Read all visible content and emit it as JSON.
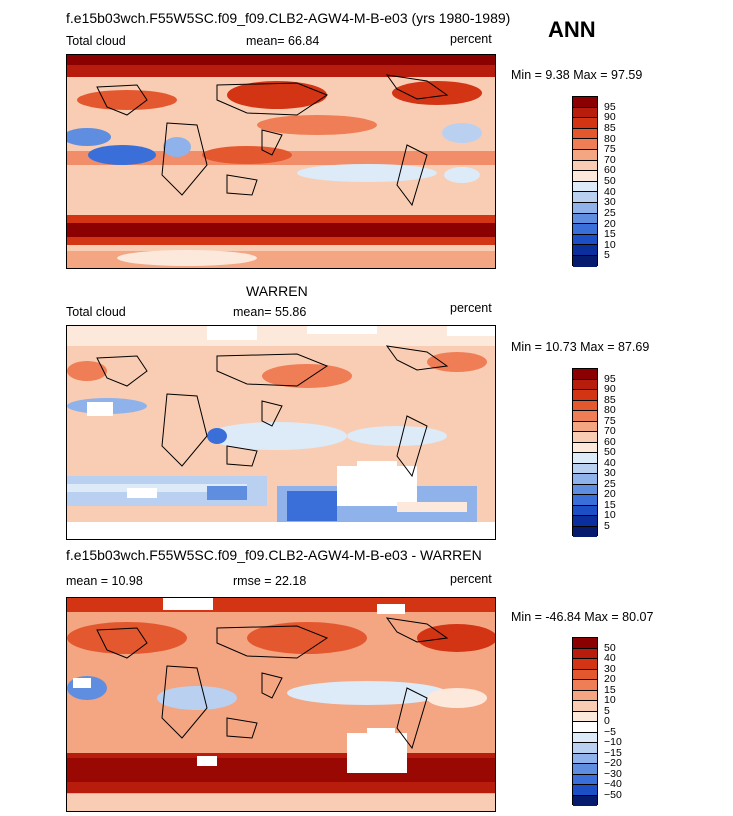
{
  "season": "ANN",
  "panels": [
    {
      "title": "f.e15b03wch.F55W5SC.f09_f09.CLB2-AGW4-M-B-e03 (yrs 1980-1989)",
      "left_label": "Total cloud",
      "center_label": "mean=  66.84",
      "right_label": "percent",
      "minmax": "Min =   9.38 Max =  97.59"
    },
    {
      "title": "WARREN",
      "left_label": "Total cloud",
      "center_label": "mean=  55.86",
      "right_label": "percent",
      "minmax": "Min =  10.73 Max =  87.69"
    },
    {
      "title": "f.e15b03wch.F55W5SC.f09_f09.CLB2-AGW4-M-B-e03 - WARREN",
      "left_label": "mean =  10.98",
      "center_label": "rmse =  22.18",
      "right_label": "percent",
      "minmax": "Min = -46.84 Max =  80.07"
    }
  ],
  "chart_data": {
    "type": "heatmap",
    "abs_levels": [
      "95",
      "90",
      "85",
      "80",
      "75",
      "70",
      "60",
      "50",
      "40",
      "30",
      "25",
      "20",
      "15",
      "10",
      "5"
    ],
    "abs_colors": [
      "#8b0000",
      "#b81c0c",
      "#d23414",
      "#e4582f",
      "#ef7d55",
      "#f4a582",
      "#f9cdb3",
      "#fde8dc",
      "#ddeaf8",
      "#b9d0f1",
      "#8fb2ea",
      "#5f8ee0",
      "#3a6fda",
      "#1c4fc6",
      "#0a2e9c",
      "#061a6e"
    ],
    "diff_levels": [
      "50",
      "40",
      "30",
      "20",
      "15",
      "10",
      "5",
      "0",
      "−5",
      "−10",
      "−15",
      "−20",
      "−30",
      "−40",
      "−50"
    ],
    "diff_colors": [
      "#8b0000",
      "#b81c0c",
      "#d23414",
      "#e4582f",
      "#ef7d55",
      "#f4a582",
      "#f9cdb3",
      "#fde8dc",
      "#ffffff",
      "#ddeaf8",
      "#b9d0f1",
      "#8fb2ea",
      "#5f8ee0",
      "#3a6fda",
      "#1c4fc6",
      "#061a6e"
    ]
  }
}
